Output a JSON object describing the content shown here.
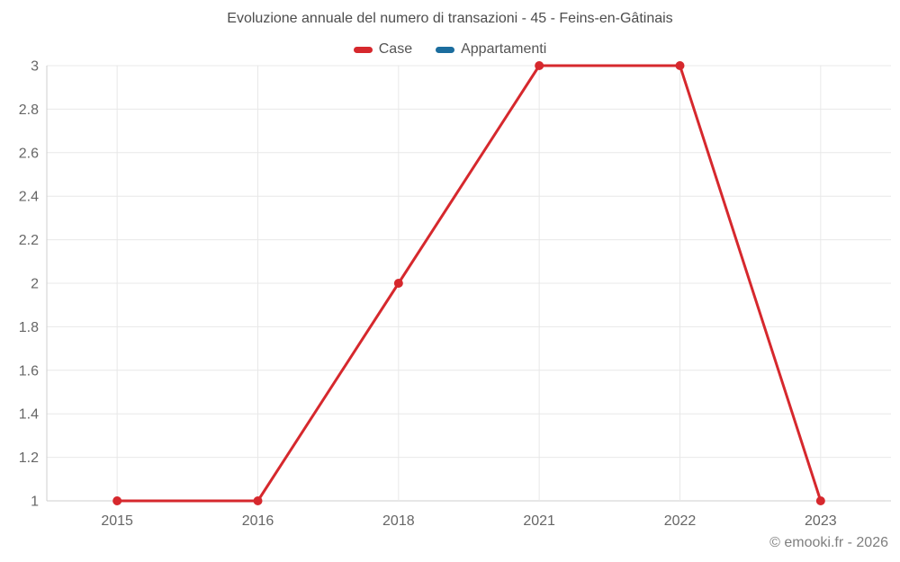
{
  "title": "Evoluzione annuale del numero di transazioni - 45 - Feins-en-Gâtinais",
  "legend": [
    {
      "label": "Case",
      "color": "#d6282d"
    },
    {
      "label": "Appartamenti",
      "color": "#1b6d9e"
    }
  ],
  "footer": {
    "copyright": "© emooki.fr - 2026"
  },
  "colors": {
    "grid": "#e8e8e8",
    "axis": "#cfcfcf",
    "tick_text": "#666666",
    "title_text": "#4d4d4d"
  },
  "chart_data": {
    "type": "line",
    "title": "Evoluzione annuale del numero di transazioni - 45 - Feins-en-Gâtinais",
    "categories": [
      "2015",
      "2016",
      "2018",
      "2021",
      "2022",
      "2023"
    ],
    "series": [
      {
        "name": "Case",
        "color": "#d6282d",
        "values": [
          1,
          1,
          2,
          3,
          3,
          1
        ]
      },
      {
        "name": "Appartamenti",
        "color": "#1b6d9e",
        "values": []
      }
    ],
    "xlabel": "",
    "ylabel": "",
    "ylim": [
      1,
      3
    ],
    "y_ticks": [
      1,
      1.2,
      1.4,
      1.6,
      1.8,
      2,
      2.2,
      2.4,
      2.6,
      2.8,
      3
    ],
    "grid": true,
    "legend_position": "top"
  }
}
